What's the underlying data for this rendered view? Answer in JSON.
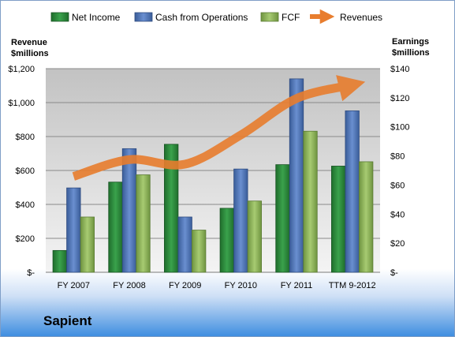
{
  "company": "Sapient",
  "chart_data": {
    "type": "bar",
    "categories": [
      "FY 2007",
      "FY 2008",
      "FY 2009",
      "FY 2010",
      "FY 2011",
      "TTM 9-2012"
    ],
    "series": [
      {
        "name": "Net Income",
        "axis": "right",
        "color": "#2e8b3e",
        "values": [
          15,
          62,
          88,
          44,
          74,
          73
        ]
      },
      {
        "name": "Cash from Operations",
        "axis": "right",
        "color": "#4e73b5",
        "values": [
          58,
          85,
          38,
          71,
          133,
          111
        ]
      },
      {
        "name": "FCF",
        "axis": "right",
        "color": "#8fb55a",
        "values": [
          38,
          67,
          29,
          49,
          97,
          76
        ]
      },
      {
        "name": "Revenues",
        "axis": "left",
        "type": "line",
        "color": "#e87d2e",
        "values": [
          565,
          664,
          637,
          809,
          1024,
          1104
        ]
      }
    ],
    "y_left": {
      "label_line1": "Revenue",
      "label_line2": "$millions",
      "lim": [
        0,
        1200
      ],
      "ticks": [
        "$-",
        "$200",
        "$400",
        "$600",
        "$800",
        "$1,000",
        "$1,200"
      ]
    },
    "y_right": {
      "label_line1": "Earnings",
      "label_line2": "$millions",
      "lim": [
        0,
        140
      ],
      "ticks": [
        "$-",
        "$20",
        "$40",
        "$60",
        "$80",
        "$100",
        "$120",
        "$140"
      ]
    },
    "grid": true,
    "legend_position": "top"
  }
}
